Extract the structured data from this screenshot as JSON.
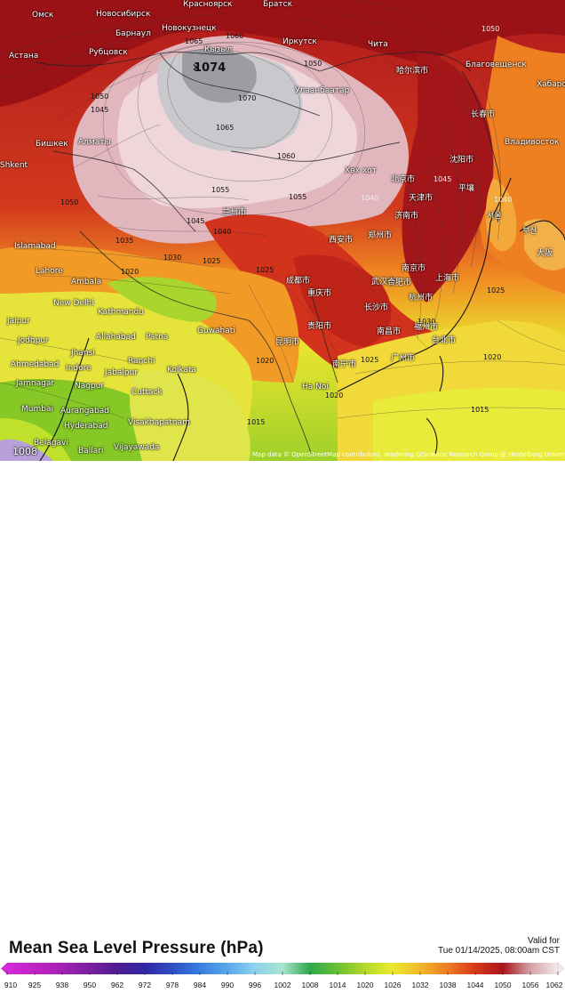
{
  "legend": {
    "title": "Mean Sea Level Pressure (hPa)",
    "valid_label": "Valid for",
    "valid_time": "Tue 01/14/2025, 08:00am CST",
    "ticks": [
      "910",
      "925",
      "938",
      "950",
      "962",
      "972",
      "978",
      "984",
      "990",
      "996",
      "1002",
      "1008",
      "1014",
      "1020",
      "1026",
      "1032",
      "1038",
      "1044",
      "1050",
      "1056",
      "1062"
    ],
    "colors": [
      "#d52bd9",
      "#c023c4",
      "#a322b5",
      "#7a1fa0",
      "#4f1c92",
      "#3327a6",
      "#2c4fc4",
      "#3a7ee0",
      "#58a8ea",
      "#8ed2ee",
      "#a8e3cf",
      "#2ea84a",
      "#67c233",
      "#b6d92b",
      "#eaea2d",
      "#f0b82a",
      "#ee7b22",
      "#d83a1c",
      "#a8151a",
      "#d2a2a7",
      "#f4eaeb"
    ]
  },
  "attribution": "Map data © OpenStreetMap contributors, rendering GIScience Research Group @ Heidelberg University",
  "corner_value": "1008",
  "pressure_centers": [
    {
      "label": "1074",
      "icon": "high-center-marker"
    }
  ],
  "isobar_labels": [
    "1065",
    "1060",
    "1050",
    "1070",
    "1050",
    "1045",
    "1065",
    "1060",
    "1055",
    "1055",
    "1050",
    "1045",
    "1040",
    "1035",
    "1030",
    "1025",
    "1020",
    "1025",
    "1040",
    "1050",
    "1045",
    "1040",
    "1025",
    "1030",
    "1020",
    "1020",
    "1025",
    "1020",
    "1015",
    "1015",
    "1020",
    "1025",
    "1020",
    "1050",
    "1040",
    "1045",
    "1035",
    "1030",
    "1025",
    "1020",
    "1015"
  ],
  "cities": [
    "Омск",
    "Новосибирск",
    "Красноярск",
    "Братск",
    "Барнаул",
    "Новокузнецк",
    "Рубцовск",
    "Кызыл",
    "Иркутск",
    "Чита",
    "Астана",
    "Улаанбаатар",
    "Благовещенск",
    "Хабаровск",
    "Бишкек",
    "Алматы",
    "Хөх хот",
    "Shkent",
    "Islamabad",
    "Lahore",
    "Ambala",
    "New Delhi",
    "Kathmandu",
    "Guwahati",
    "Jodhpur",
    "Allahabad",
    "Patna",
    "Jhansi",
    "Ranchi",
    "Ahmedabad",
    "Indore",
    "Jabalpur",
    "Kolkata",
    "Jamnagar",
    "Nagpur",
    "Cuttack",
    "Mumbai",
    "Aurangabad",
    "Visakhapatnam",
    "Hyderabad",
    "Belagavi",
    "Ballari",
    "Vijayawada",
    "Ha Noi",
    "Владивосток",
    "哈尔滨市",
    "长春市",
    "沈阳市",
    "北京市",
    "天津市",
    "济南市",
    "郑州市",
    "西安市",
    "武汉市",
    "成都市",
    "重庆市",
    "长沙市",
    "贵阳市",
    "昆明市",
    "南宁市",
    "广州市",
    "福州市",
    "台北市",
    "上海市",
    "南京市",
    "合肥市",
    "杭州市",
    "南昌市",
    "兰州市",
    "平壤",
    "서울",
    "부산",
    "大阪",
    "Jaipur"
  ],
  "map_colors": {
    "high": "#f4e4e7",
    "very_high": "#d6d8db",
    "dark_red": "#9e1418",
    "red": "#c8281e",
    "orange": "#ee7b22",
    "yellow": "#ecea33",
    "green": "#7cc427",
    "sea_yellow": "#f2d43a"
  }
}
